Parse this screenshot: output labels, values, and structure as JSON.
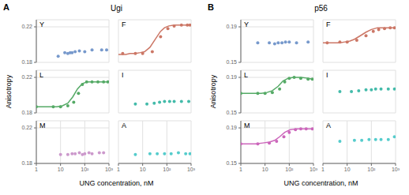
{
  "chart_data": [
    {
      "type": "scatter",
      "title": "Ugi",
      "annotations": [
        "A"
      ],
      "xlabel": "UNG concentration, nM",
      "ylabel": "Anisotropy",
      "log": "x",
      "xlim": [
        1,
        1000
      ],
      "xticks": [
        1,
        10,
        {
          "value": 100,
          "label": "10²"
        },
        {
          "value": 1000,
          "label": "10³"
        }
      ],
      "grid": true,
      "subplots": [
        {
          "title": "Y",
          "color": "#7799cc",
          "ylim": [
            0.18,
            0.228
          ],
          "yticks": [
            0.18,
            0.22
          ],
          "tick_labels": "y",
          "series": [
            {
              "type": "scatter",
              "x": [
                8,
                15,
                20,
                25,
                30,
                40,
                60,
                100,
                200,
                500,
                800
              ],
              "values": [
                0.187,
                0.191,
                0.19,
                0.191,
                0.191,
                0.192,
                0.193,
                0.192,
                0.194,
                0.194,
                0.194
              ]
            }
          ]
        },
        {
          "title": "F",
          "color": "#cc7766",
          "ylim": [
            0.18,
            0.228
          ],
          "yticks": [
            0.18,
            0.22
          ],
          "tick_labels": false,
          "series": [
            {
              "type": "line",
              "x": [
                1,
                1.5,
                2,
                3,
                5,
                8,
                12,
                20,
                35,
                55,
                80,
                120,
                200,
                350,
                600,
                900
              ],
              "values": [
                0.189,
                0.189,
                0.189,
                0.19,
                0.19,
                0.191,
                0.192,
                0.197,
                0.207,
                0.215,
                0.219,
                0.221,
                0.222,
                0.222,
                0.222,
                0.222
              ]
            },
            {
              "type": "scatter",
              "x": [
                1.5,
                5,
                10,
                25,
                55,
                110,
                200,
                400,
                700,
                900
              ],
              "values": [
                0.19,
                0.19,
                0.19,
                0.192,
                0.209,
                0.218,
                0.221,
                0.222,
                0.222,
                0.222
              ]
            }
          ]
        },
        {
          "title": "L",
          "color": "#55aa66",
          "ylim": [
            0.18,
            0.228
          ],
          "yticks": [
            0.18,
            0.22
          ],
          "tick_labels": "y",
          "series": [
            {
              "type": "line",
              "x": [
                1,
                2,
                4,
                7,
                12,
                20,
                32,
                50,
                80,
                130,
                220,
                400,
                700,
                900
              ],
              "values": [
                0.187,
                0.187,
                0.187,
                0.187,
                0.188,
                0.191,
                0.198,
                0.207,
                0.213,
                0.215,
                0.215,
                0.215,
                0.215,
                0.215
              ]
            },
            {
              "type": "scatter",
              "x": [
                1,
                5,
                10,
                20,
                35,
                55,
                80,
                120,
                200,
                350,
                600,
                900
              ],
              "values": [
                0.187,
                0.187,
                0.187,
                0.188,
                0.192,
                0.202,
                0.212,
                0.215,
                0.215,
                0.215,
                0.215,
                0.215
              ]
            }
          ]
        },
        {
          "title": "I",
          "color": "#44bbaa",
          "ylim": [
            0.18,
            0.228
          ],
          "yticks": [
            0.18,
            0.22
          ],
          "tick_labels": false,
          "series": [
            {
              "type": "scatter",
              "x": [
                5,
                15,
                30,
                50,
                80,
                130,
                200,
                400,
                800
              ],
              "values": [
                0.19,
                0.19,
                0.191,
                0.192,
                0.193,
                0.193,
                0.193,
                0.193,
                0.193
              ]
            }
          ]
        },
        {
          "title": "M",
          "color": "#cc99cc",
          "ylim": [
            0.18,
            0.228
          ],
          "yticks": [
            0.18,
            0.22
          ],
          "series": [
            {
              "type": "scatter",
              "x": [
                10,
                20,
                30,
                40,
                60,
                80,
                100,
                150,
                200,
                400,
                600
              ],
              "values": [
                0.19,
                0.19,
                0.191,
                0.191,
                0.192,
                0.19,
                0.191,
                0.192,
                0.191,
                0.192,
                0.192
              ]
            }
          ]
        },
        {
          "title": "A",
          "color": "#55cccc",
          "ylim": [
            0.18,
            0.228
          ],
          "yticks": [
            0.18,
            0.22
          ],
          "tick_labels": "x",
          "series": [
            {
              "type": "scatter",
              "x": [
                5,
                20,
                40,
                80,
                150,
                300,
                600,
                900
              ],
              "values": [
                0.19,
                0.191,
                0.191,
                0.191,
                0.191,
                0.192,
                0.191,
                0.191
              ]
            }
          ]
        }
      ]
    },
    {
      "type": "scatter",
      "title": "p56",
      "annotations": [
        "B"
      ],
      "xlabel": "UNG concentration, nM",
      "ylabel": "Anisotropy",
      "log": "x",
      "xlim": [
        1,
        1000
      ],
      "xticks": [
        1,
        10,
        {
          "value": 100,
          "label": "10²"
        },
        {
          "value": 1000,
          "label": "10³"
        }
      ],
      "grid": true,
      "subplots": [
        {
          "title": "Y",
          "color": "#7799cc",
          "ylim": [
            0.15,
            0.198
          ],
          "yticks": [
            0.15,
            0.19
          ],
          "tick_labels": "y",
          "series": [
            {
              "type": "scatter",
              "x": [
                5,
                15,
                25,
                35,
                50,
                70,
                100,
                200,
                600
              ],
              "values": [
                0.172,
                0.172,
                0.171,
                0.172,
                0.172,
                0.173,
                0.173,
                0.172,
                0.173
              ]
            }
          ]
        },
        {
          "title": "F",
          "color": "#cc7766",
          "ylim": [
            0.15,
            0.198
          ],
          "yticks": [
            0.15,
            0.19
          ],
          "tick_labels": false,
          "series": [
            {
              "type": "line",
              "x": [
                1,
                2,
                3,
                5,
                8,
                13,
                20,
                35,
                60,
                100,
                180,
                350,
                700,
                900
              ],
              "values": [
                0.172,
                0.172,
                0.172,
                0.172,
                0.173,
                0.174,
                0.176,
                0.18,
                0.184,
                0.187,
                0.189,
                0.189,
                0.189,
                0.189
              ]
            },
            {
              "type": "scatter",
              "x": [
                1.5,
                5,
                10,
                25,
                60,
                120,
                200,
                350,
                600,
                900
              ],
              "values": [
                0.172,
                0.173,
                0.173,
                0.175,
                0.18,
                0.185,
                0.187,
                0.188,
                0.189,
                0.189
              ]
            }
          ]
        },
        {
          "title": "L",
          "color": "#55aa66",
          "ylim": [
            0.15,
            0.198
          ],
          "yticks": [
            0.15,
            0.19
          ],
          "tick_labels": "y",
          "series": [
            {
              "type": "line",
              "x": [
                1,
                2,
                4,
                7,
                12,
                20,
                35,
                55,
                90,
                150,
                300,
                600,
                900
              ],
              "values": [
                0.172,
                0.172,
                0.172,
                0.172,
                0.173,
                0.175,
                0.18,
                0.186,
                0.189,
                0.19,
                0.19,
                0.189,
                0.188
              ]
            },
            {
              "type": "scatter",
              "x": [
                1,
                5,
                10,
                20,
                40,
                65,
                100,
                160,
                300,
                600,
                900
              ],
              "values": [
                0.172,
                0.172,
                0.172,
                0.173,
                0.177,
                0.185,
                0.189,
                0.19,
                0.189,
                0.188,
                0.188
              ]
            }
          ]
        },
        {
          "title": "I",
          "color": "#44bbaa",
          "ylim": [
            0.15,
            0.198
          ],
          "yticks": [
            0.15,
            0.19
          ],
          "tick_labels": false,
          "series": [
            {
              "type": "scatter",
              "x": [
                5,
                15,
                30,
                60,
                100,
                150,
                250,
                500,
                900
              ],
              "values": [
                0.174,
                0.174,
                0.175,
                0.176,
                0.176,
                0.177,
                0.177,
                0.177,
                0.177
              ]
            }
          ]
        },
        {
          "title": "M",
          "color": "#cc66bb",
          "ylim": [
            0.15,
            0.198
          ],
          "yticks": [
            0.15,
            0.19
          ],
          "series": [
            {
              "type": "line",
              "x": [
                1,
                2,
                4,
                8,
                15,
                25,
                40,
                65,
                110,
                200,
                400,
                800,
                900
              ],
              "values": [
                0.172,
                0.172,
                0.172,
                0.173,
                0.174,
                0.176,
                0.18,
                0.185,
                0.188,
                0.189,
                0.189,
                0.189,
                0.189
              ]
            },
            {
              "type": "scatter",
              "x": [
                1,
                5,
                15,
                30,
                60,
                100,
                180,
                300,
                500,
                900
              ],
              "values": [
                0.172,
                0.172,
                0.173,
                0.175,
                0.18,
                0.185,
                0.188,
                0.189,
                0.189,
                0.189
              ]
            }
          ]
        },
        {
          "title": "A",
          "color": "#55cccc",
          "ylim": [
            0.15,
            0.198
          ],
          "yticks": [
            0.15,
            0.19
          ],
          "tick_labels": "x",
          "series": [
            {
              "type": "scatter",
              "x": [
                5,
                20,
                40,
                80,
                150,
                250,
                500,
                900
              ],
              "values": [
                0.175,
                0.176,
                0.176,
                0.177,
                0.177,
                0.177,
                0.177,
                0.18
              ]
            }
          ]
        }
      ]
    }
  ]
}
